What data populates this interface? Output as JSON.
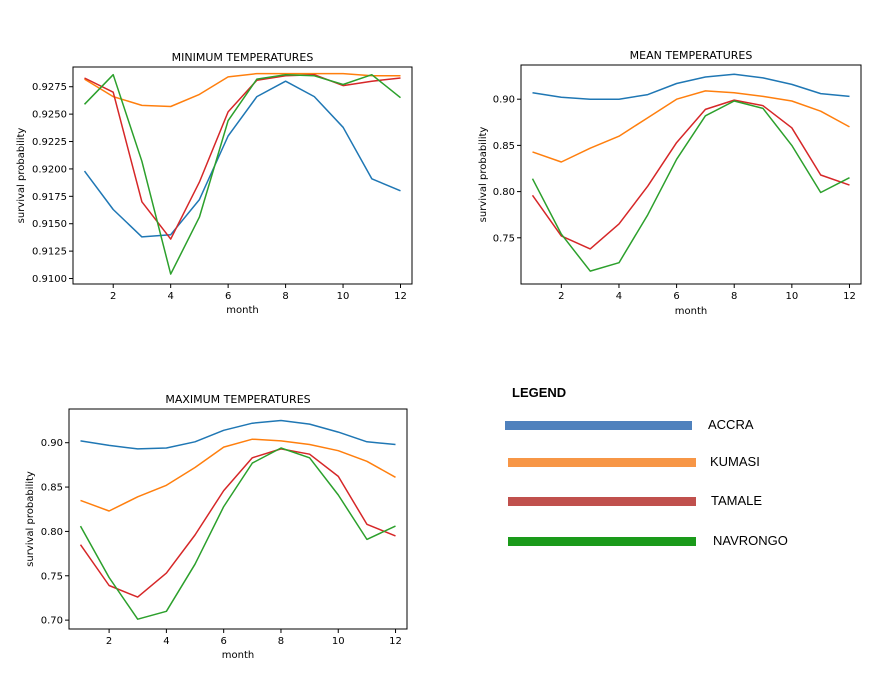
{
  "colors": {
    "ACCRA": "#1f77b4",
    "KUMASI": "#ff7f0e",
    "TAMALE": "#d62728",
    "NAVRONGO": "#2ca02c",
    "legend_ACCRA": "#4f81bd",
    "legend_KUMASI": "#f79646",
    "legend_TAMALE": "#c0504d",
    "legend_NAVRONGO": "#1a9a1a"
  },
  "legend": {
    "title": "LEGEND",
    "items": [
      {
        "label": "ACCRA",
        "color": "#4f81bd"
      },
      {
        "label": "KUMASI",
        "color": "#f79646"
      },
      {
        "label": "TAMALE",
        "color": "#c0504d"
      },
      {
        "label": "NAVRONGO",
        "color": "#1a9a1a"
      }
    ]
  },
  "chart_data": [
    {
      "type": "line",
      "title": "MINIMUM TEMPERATURES",
      "xlabel": "month",
      "ylabel": "survival probability",
      "x": [
        1,
        2,
        3,
        4,
        5,
        6,
        7,
        8,
        9,
        10,
        11,
        12
      ],
      "xticks": [
        2,
        4,
        6,
        8,
        10,
        12
      ],
      "xlim": [
        0.6,
        12.4
      ],
      "ylim": [
        0.9095,
        0.9293
      ],
      "yticks": [
        0.91,
        0.9125,
        0.915,
        0.9175,
        0.92,
        0.9225,
        0.925,
        0.9275
      ],
      "ytick_labels": [
        "0.9100",
        "0.9125",
        "0.9150",
        "0.9175",
        "0.9200",
        "0.9225",
        "0.9250",
        "0.9275"
      ],
      "series": [
        {
          "key": "ACCRA",
          "values": [
            0.9198,
            0.9163,
            0.9138,
            0.914,
            0.9172,
            0.923,
            0.9266,
            0.928,
            0.9266,
            0.9238,
            0.9191,
            0.918
          ]
        },
        {
          "key": "KUMASI",
          "values": [
            0.9282,
            0.9266,
            0.9258,
            0.9257,
            0.9268,
            0.9284,
            0.9287,
            0.9287,
            0.9287,
            0.9287,
            0.9285,
            0.9285
          ]
        },
        {
          "key": "TAMALE",
          "values": [
            0.9283,
            0.927,
            0.917,
            0.9136,
            0.9188,
            0.9252,
            0.9281,
            0.9285,
            0.9286,
            0.9276,
            0.928,
            0.9283
          ]
        },
        {
          "key": "NAVRONGO",
          "values": [
            0.9259,
            0.9286,
            0.9207,
            0.9104,
            0.9156,
            0.9244,
            0.9282,
            0.9286,
            0.9285,
            0.9277,
            0.9286,
            0.9265
          ]
        }
      ]
    },
    {
      "type": "line",
      "title": "MEAN TEMPERATURES",
      "xlabel": "month",
      "ylabel": "survival probability",
      "x": [
        1,
        2,
        3,
        4,
        5,
        6,
        7,
        8,
        9,
        10,
        11,
        12
      ],
      "xticks": [
        2,
        4,
        6,
        8,
        10,
        12
      ],
      "xlim": [
        0.6,
        12.4
      ],
      "ylim": [
        0.7,
        0.937
      ],
      "yticks": [
        0.75,
        0.8,
        0.85,
        0.9
      ],
      "ytick_labels": [
        "0.75",
        "0.80",
        "0.85",
        "0.90"
      ],
      "series": [
        {
          "key": "ACCRA",
          "values": [
            0.907,
            0.902,
            0.9,
            0.9,
            0.905,
            0.917,
            0.924,
            0.927,
            0.923,
            0.916,
            0.906,
            0.903
          ]
        },
        {
          "key": "KUMASI",
          "values": [
            0.843,
            0.832,
            0.847,
            0.86,
            0.88,
            0.9,
            0.909,
            0.907,
            0.903,
            0.898,
            0.887,
            0.87
          ]
        },
        {
          "key": "TAMALE",
          "values": [
            0.796,
            0.752,
            0.738,
            0.765,
            0.806,
            0.853,
            0.889,
            0.899,
            0.893,
            0.869,
            0.818,
            0.807
          ]
        },
        {
          "key": "NAVRONGO",
          "values": [
            0.814,
            0.754,
            0.714,
            0.723,
            0.775,
            0.835,
            0.882,
            0.898,
            0.89,
            0.85,
            0.799,
            0.815
          ]
        }
      ]
    },
    {
      "type": "line",
      "title": "MAXIMUM TEMPERATURES",
      "xlabel": "month",
      "ylabel": "survival probability",
      "x": [
        1,
        2,
        3,
        4,
        5,
        6,
        7,
        8,
        9,
        10,
        11,
        12
      ],
      "xticks": [
        2,
        4,
        6,
        8,
        10,
        12
      ],
      "xlim": [
        0.6,
        12.4
      ],
      "ylim": [
        0.69,
        0.938
      ],
      "yticks": [
        0.7,
        0.75,
        0.8,
        0.85,
        0.9
      ],
      "ytick_labels": [
        "0.70",
        "0.75",
        "0.80",
        "0.85",
        "0.90"
      ],
      "series": [
        {
          "key": "ACCRA",
          "values": [
            0.902,
            0.897,
            0.893,
            0.894,
            0.901,
            0.914,
            0.922,
            0.925,
            0.921,
            0.912,
            0.901,
            0.898
          ]
        },
        {
          "key": "KUMASI",
          "values": [
            0.835,
            0.823,
            0.839,
            0.852,
            0.872,
            0.895,
            0.904,
            0.902,
            0.898,
            0.891,
            0.879,
            0.861
          ]
        },
        {
          "key": "TAMALE",
          "values": [
            0.785,
            0.739,
            0.726,
            0.753,
            0.796,
            0.846,
            0.883,
            0.893,
            0.887,
            0.862,
            0.808,
            0.795
          ]
        },
        {
          "key": "NAVRONGO",
          "values": [
            0.806,
            0.748,
            0.701,
            0.71,
            0.763,
            0.828,
            0.877,
            0.894,
            0.883,
            0.841,
            0.791,
            0.806
          ]
        }
      ]
    }
  ]
}
